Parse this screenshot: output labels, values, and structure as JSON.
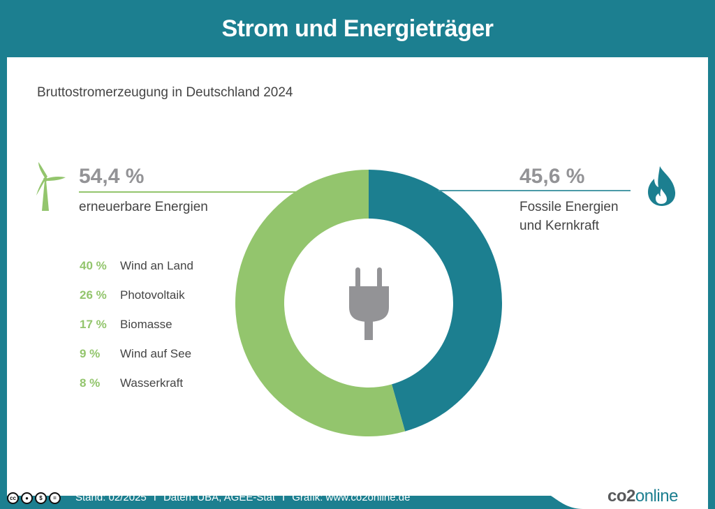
{
  "header": {
    "title": "Strom und Energieträger"
  },
  "subtitle": "Bruttostromerzeugung in Deutschland 2024",
  "renewables": {
    "percent_label": "54,4 %",
    "label": "erneuerbare Energien",
    "icon": "wind-turbine-icon",
    "breakdown": [
      {
        "percent": "40 %",
        "name": "Wind an Land"
      },
      {
        "percent": "26 %",
        "name": "Photovoltaik"
      },
      {
        "percent": "17 %",
        "name": "Biomasse"
      },
      {
        "percent": "9 %",
        "name": "Wind auf See"
      },
      {
        "percent": "8 %",
        "name": "Wasserkraft"
      }
    ]
  },
  "fossil": {
    "percent_label": "45,6 %",
    "label_line1": "Fossile Energien",
    "label_line2": "und Kernkraft",
    "icon": "flame-icon"
  },
  "center_icon": "power-plug-icon",
  "footer": {
    "license_icons": [
      "cc-icon",
      "by-icon",
      "nc-icon",
      "nd-icon"
    ],
    "stand": "Stand: 02/2025",
    "daten": "Daten: UBA, AGEE-Stat",
    "grafik": "Grafik: www.co2online.de",
    "separator": "I",
    "logo_part1": "co2",
    "logo_part2": "online"
  },
  "colors": {
    "brand_teal": "#1c7f90",
    "renewable_green": "#93c56d",
    "plug_gray": "#939396",
    "text_dark": "#444444"
  },
  "chart_data": {
    "type": "pie",
    "variant": "donut",
    "title": "Bruttostromerzeugung in Deutschland 2024",
    "start_angle_deg": 0,
    "direction": "clockwise",
    "series": [
      {
        "name": "Fossile Energien und Kernkraft",
        "value": 45.6,
        "color": "#1c7f90"
      },
      {
        "name": "erneuerbare Energien",
        "value": 54.4,
        "color": "#93c56d"
      }
    ],
    "sub_breakdown": {
      "parent": "erneuerbare Energien",
      "unit": "%",
      "categories": [
        "Wind an Land",
        "Photovoltaik",
        "Biomasse",
        "Wind auf See",
        "Wasserkraft"
      ],
      "values": [
        40,
        26,
        17,
        9,
        8
      ]
    }
  }
}
